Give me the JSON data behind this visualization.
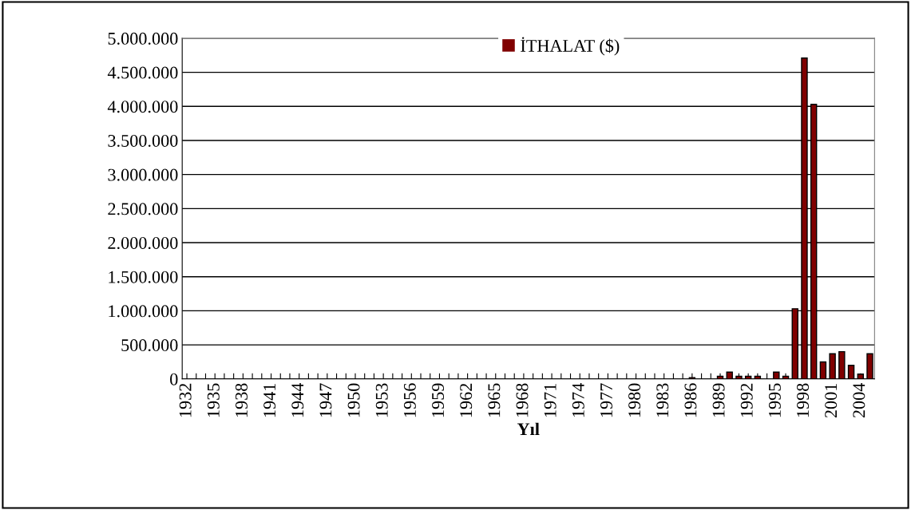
{
  "chart_data": {
    "type": "bar",
    "xlabel": "Yıl",
    "categories": [
      "1932",
      null,
      null,
      "1935",
      null,
      null,
      "1938",
      null,
      null,
      "1941",
      null,
      null,
      "1944",
      null,
      null,
      "1947",
      null,
      null,
      "1950",
      null,
      null,
      "1953",
      null,
      null,
      "1956",
      null,
      null,
      "1959",
      null,
      null,
      "1962",
      null,
      null,
      "1965",
      null,
      null,
      "1968",
      null,
      null,
      "1971",
      null,
      null,
      "1974",
      null,
      null,
      "1977",
      null,
      null,
      "1980",
      null,
      null,
      "1983",
      null,
      null,
      "1986",
      null,
      null,
      "1989",
      null,
      null,
      "1992",
      null,
      null,
      "1995",
      null,
      null,
      "1998",
      null,
      null,
      "2001",
      null,
      null,
      "2004",
      null
    ],
    "series": [
      {
        "name": "İTHALAT ($)",
        "color": "#800000",
        "values": [
          0,
          0,
          0,
          0,
          0,
          0,
          0,
          0,
          0,
          0,
          0,
          0,
          0,
          0,
          0,
          0,
          0,
          0,
          0,
          0,
          0,
          0,
          0,
          0,
          0,
          0,
          0,
          0,
          0,
          0,
          0,
          0,
          0,
          0,
          0,
          0,
          0,
          0,
          0,
          0,
          0,
          0,
          0,
          0,
          0,
          0,
          0,
          0,
          0,
          0,
          0,
          0,
          0,
          0,
          20000,
          0,
          0,
          40000,
          100000,
          40000,
          40000,
          40000,
          0,
          100000,
          40000,
          1030000,
          4710000,
          4030000,
          250000,
          370000,
          400000,
          200000,
          70000,
          370000
        ]
      }
    ],
    "ylim": [
      0,
      5000000
    ],
    "yticks": [
      0,
      {
        "value": 500000,
        "label": "500.000"
      },
      {
        "value": 1000000,
        "label": "1.000.000"
      },
      {
        "value": 1500000,
        "label": "1.500.000"
      },
      {
        "value": 2000000,
        "label": "2.000.000"
      },
      {
        "value": 2500000,
        "label": "2.500.000"
      },
      {
        "value": 3000000,
        "label": "3.000.000"
      },
      {
        "value": 3500000,
        "label": "3.500.000"
      },
      {
        "value": 4000000,
        "label": "4.000.000"
      },
      {
        "value": 4500000,
        "label": "4.500.000"
      },
      {
        "value": 5000000,
        "label": "5.000.000"
      }
    ],
    "grid": "y",
    "legend": "top right"
  }
}
